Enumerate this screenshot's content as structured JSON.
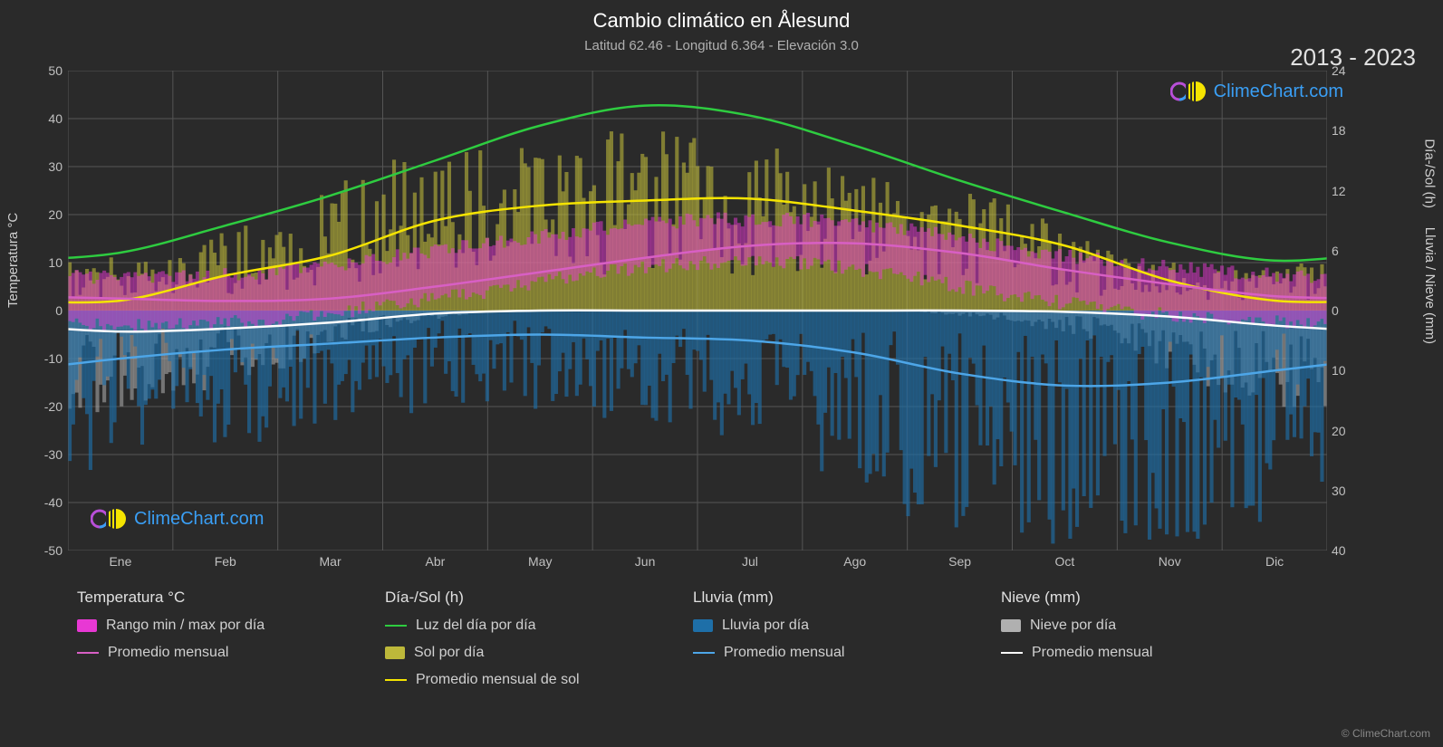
{
  "title": "Cambio climático en Ålesund",
  "subtitle": "Latitud 62.46 - Longitud 6.364 - Elevación 3.0",
  "year_range": "2013 - 2023",
  "brand": "ClimeChart.com",
  "copyright": "© ClimeChart.com",
  "colors": {
    "background": "#2a2a2a",
    "grid": "#555555",
    "text": "#e0e0e0",
    "temp_range": "#e838d4",
    "temp_avg": "#d85fc4",
    "daylight": "#2ecc40",
    "sun_bars": "#bdb83a",
    "sun_avg": "#f5e400",
    "rain_bars": "#1e6fa8",
    "rain_avg": "#4da6e8",
    "snow_bars": "#b0b0b0",
    "snow_avg": "#ffffff",
    "brand_blue": "#3a9ff5",
    "brand_purple": "#b84fd8"
  },
  "axes": {
    "left_label": "Temperatura °C",
    "right_top_label": "Día-/Sol (h)",
    "right_bottom_label": "Lluvia / Nieve (mm)",
    "temp_min": -50,
    "temp_max": 50,
    "temp_ticks": [
      -50,
      -40,
      -30,
      -20,
      -10,
      0,
      10,
      20,
      30,
      40,
      50
    ],
    "hours_ticks": [
      0,
      6,
      12,
      18,
      24
    ],
    "precip_ticks": [
      0,
      10,
      20,
      30,
      40
    ],
    "months": [
      "Ene",
      "Feb",
      "Mar",
      "Abr",
      "May",
      "Jun",
      "Jul",
      "Ago",
      "Sep",
      "Oct",
      "Nov",
      "Dic"
    ]
  },
  "series": {
    "daylight": [
      5.8,
      8.5,
      11.5,
      15,
      18.5,
      20.5,
      19.5,
      16.5,
      13,
      9.8,
      6.8,
      5.0
    ],
    "sun_avg": [
      1.0,
      3.5,
      5.5,
      9.0,
      10.5,
      11.0,
      11.2,
      10.0,
      8.5,
      6.5,
      3.0,
      1.0
    ],
    "temp_avg": [
      2.5,
      2.0,
      2.5,
      5.0,
      8.0,
      11.0,
      13.5,
      14.0,
      12.0,
      8.5,
      5.5,
      3.0
    ],
    "rain_avg": [
      8.0,
      6.5,
      5.5,
      4.5,
      4.0,
      4.5,
      5.0,
      7.0,
      10.5,
      12.5,
      12.0,
      10.0
    ],
    "snow_avg": [
      3.5,
      3.0,
      2.0,
      0.5,
      0.0,
      0.0,
      0.0,
      0.0,
      0.0,
      0.2,
      1.0,
      2.5
    ]
  },
  "daily_bars": {
    "sun_max": [
      5,
      6,
      10,
      15,
      17,
      18,
      18,
      16,
      14,
      11,
      6,
      4
    ],
    "temp_min": [
      -3,
      -3,
      -2,
      1,
      4,
      8,
      10,
      10,
      7,
      3,
      0,
      -2
    ],
    "temp_max": [
      7,
      7,
      8,
      11,
      14,
      17,
      19,
      19,
      17,
      13,
      10,
      8
    ],
    "rain_max": [
      30,
      25,
      22,
      18,
      16,
      18,
      20,
      26,
      35,
      40,
      40,
      38
    ],
    "snow_max": [
      18,
      15,
      10,
      3,
      0,
      0,
      0,
      0,
      0,
      2,
      6,
      14
    ]
  },
  "legend": {
    "temp": {
      "header": "Temperatura °C",
      "items": [
        {
          "label": "Rango min / max por día",
          "type": "swatch",
          "color": "#e838d4"
        },
        {
          "label": "Promedio mensual",
          "type": "line",
          "color": "#d85fc4"
        }
      ]
    },
    "day_sun": {
      "header": "Día-/Sol (h)",
      "items": [
        {
          "label": "Luz del día por día",
          "type": "line",
          "color": "#2ecc40"
        },
        {
          "label": "Sol por día",
          "type": "swatch",
          "color": "#bdb83a"
        },
        {
          "label": "Promedio mensual de sol",
          "type": "line",
          "color": "#f5e400"
        }
      ]
    },
    "rain": {
      "header": "Lluvia (mm)",
      "items": [
        {
          "label": "Lluvia por día",
          "type": "swatch",
          "color": "#1e6fa8"
        },
        {
          "label": "Promedio mensual",
          "type": "line",
          "color": "#4da6e8"
        }
      ]
    },
    "snow": {
      "header": "Nieve (mm)",
      "items": [
        {
          "label": "Nieve por día",
          "type": "swatch",
          "color": "#b0b0b0"
        },
        {
          "label": "Promedio mensual",
          "type": "line",
          "color": "#ffffff"
        }
      ]
    }
  }
}
